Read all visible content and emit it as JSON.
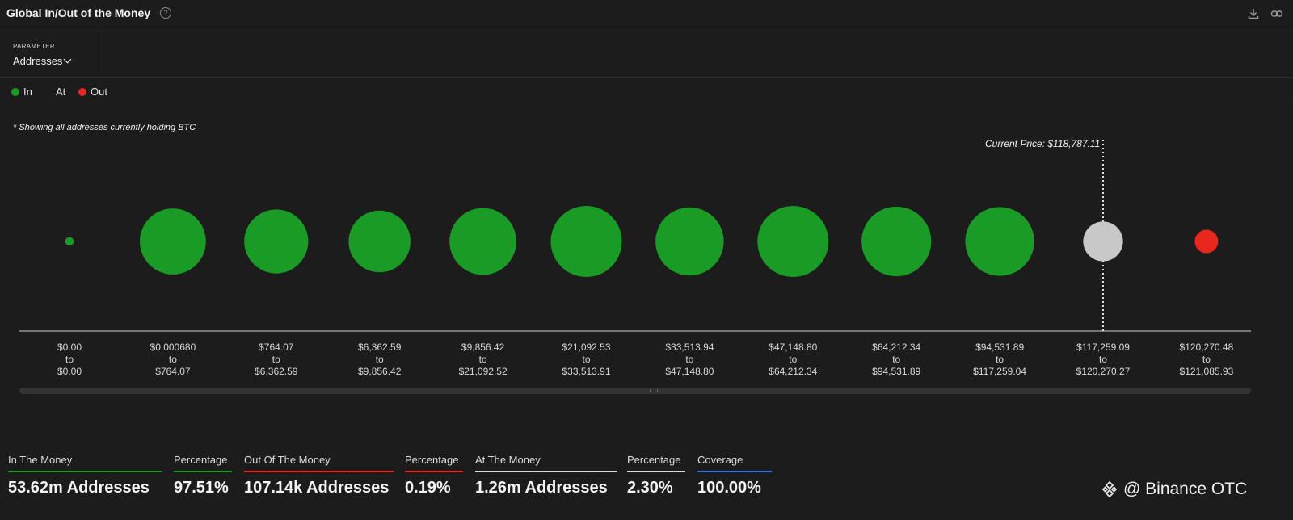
{
  "header": {
    "title": "Global In/Out of the Money",
    "help_glyph": "?"
  },
  "parameter": {
    "label": "PARAMETER",
    "value": "Addresses"
  },
  "legend": {
    "in": {
      "label": "In",
      "color": "#1a9b26"
    },
    "at": {
      "label": "At",
      "color": "#c8c8c8"
    },
    "out": {
      "label": "Out",
      "color": "#e8271e"
    }
  },
  "note": "* Showing all addresses currently holding BTC",
  "chart_data": {
    "type": "bubble",
    "current_price_label": "Current Price: $118,787.11",
    "current_price": 118787.11,
    "bins": [
      {
        "from": "$0.00",
        "to": "$0.00",
        "status": "in",
        "relative_size": 0.12
      },
      {
        "from": "$0.000680",
        "to": "$764.07",
        "status": "in",
        "relative_size": 0.93
      },
      {
        "from": "$764.07",
        "to": "$6,362.59",
        "status": "in",
        "relative_size": 0.9
      },
      {
        "from": "$6,362.59",
        "to": "$9,856.42",
        "status": "in",
        "relative_size": 0.87
      },
      {
        "from": "$9,856.42",
        "to": "$21,092.52",
        "status": "in",
        "relative_size": 0.94
      },
      {
        "from": "$21,092.53",
        "to": "$33,513.91",
        "status": "in",
        "relative_size": 1.0
      },
      {
        "from": "$33,513.94",
        "to": "$47,148.80",
        "status": "in",
        "relative_size": 0.96
      },
      {
        "from": "$47,148.80",
        "to": "$64,212.34",
        "status": "in",
        "relative_size": 1.0
      },
      {
        "from": "$64,212.34",
        "to": "$94,531.89",
        "status": "in",
        "relative_size": 0.98
      },
      {
        "from": "$94,531.89",
        "to": "$117,259.04",
        "status": "in",
        "relative_size": 0.97
      },
      {
        "from": "$117,259.09",
        "to": "$120,270.27",
        "status": "at",
        "relative_size": 0.56
      },
      {
        "from": "$120,270.48",
        "to": "$121,085.93",
        "status": "out",
        "relative_size": 0.33
      }
    ],
    "bin_separator": "to"
  },
  "stats": [
    {
      "label": "In The Money",
      "value": "53.62m Addresses",
      "color": "#1a9b26"
    },
    {
      "label": "Percentage",
      "value": "97.51%",
      "color": "#1a9b26"
    },
    {
      "label": "Out Of The Money",
      "value": "107.14k Addresses",
      "color": "#e8271e"
    },
    {
      "label": "Percentage",
      "value": "0.19%",
      "color": "#e8271e"
    },
    {
      "label": "At The Money",
      "value": "1.26m Addresses",
      "color": "#d9d9d9"
    },
    {
      "label": "Percentage",
      "value": "2.30%",
      "color": "#d9d9d9"
    },
    {
      "label": "Coverage",
      "value": "100.00%",
      "color": "#3d6fe0"
    }
  ],
  "brand": {
    "text": "@ Binance OTC"
  }
}
